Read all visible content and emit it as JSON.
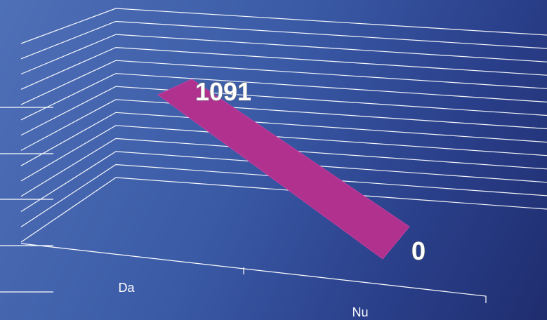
{
  "chart_data": {
    "type": "line",
    "style": "3d-ribbon",
    "categories": [
      "Da",
      "Nu"
    ],
    "values": [
      1091,
      0
    ],
    "data_labels": [
      "1091",
      "0"
    ],
    "grid": true,
    "colors": {
      "series": "#b0318e",
      "background_start": "#4f70b7",
      "background_end": "#1f2d6e",
      "gridlines": "#ffffff",
      "label_text": "#ffffff"
    }
  }
}
